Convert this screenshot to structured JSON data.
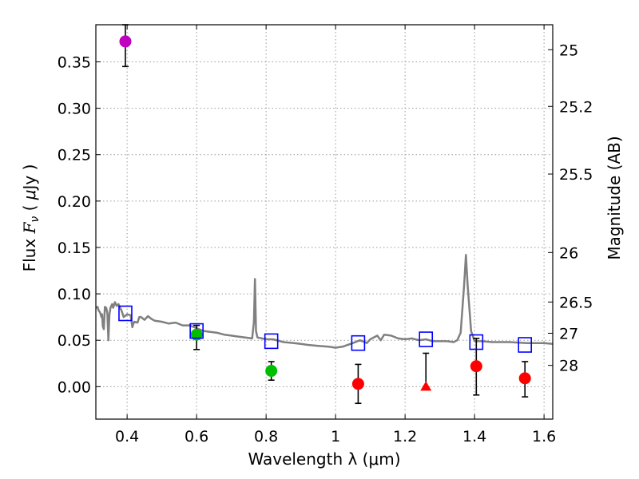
{
  "chart_data": {
    "type": "scatter",
    "xlabel": "Wavelength  λ (μm)",
    "ylabel_parts": [
      "Flux  ",
      "F",
      "ν",
      "  ( ",
      "μ",
      "Jy )"
    ],
    "y2label": "Magnitude (AB)",
    "xlim": [
      0.31,
      1.625
    ],
    "ylim": [
      -0.035,
      0.39
    ],
    "grid": true,
    "xticks": [
      0.4,
      0.6,
      0.8,
      1,
      1.2,
      1.4,
      1.6
    ],
    "xtick_labels": [
      "0.4",
      "0.6",
      "0.8",
      "1",
      "1.2",
      "1.4",
      "1.6"
    ],
    "yticks": [
      0.0,
      0.05,
      0.1,
      0.15,
      0.2,
      0.25,
      0.3,
      0.35
    ],
    "ytick_labels": [
      "0.00",
      "0.05",
      "0.10",
      "0.15",
      "0.20",
      "0.25",
      "0.30",
      "0.35"
    ],
    "mag_ticks": [
      25,
      25.2,
      25.5,
      26,
      26.5,
      27,
      28
    ],
    "mag_tick_labels": [
      "25",
      "25.2",
      "25.5",
      "26",
      "26.5",
      "27",
      "28"
    ],
    "colors": {
      "sed": "#808080",
      "purple": "#bf00bf",
      "green": "#00bf00",
      "red": "#ff0000",
      "model": "#0000ff",
      "errorbar": "#000000",
      "grid": "#9a9a9a"
    },
    "series": [
      {
        "name": "SED template",
        "kind": "line",
        "points": [
          [
            0.31,
            0.085
          ],
          [
            0.315,
            0.086
          ],
          [
            0.318,
            0.082
          ],
          [
            0.322,
            0.08
          ],
          [
            0.326,
            0.075
          ],
          [
            0.328,
            0.078
          ],
          [
            0.33,
            0.065
          ],
          [
            0.333,
            0.062
          ],
          [
            0.336,
            0.086
          ],
          [
            0.34,
            0.085
          ],
          [
            0.343,
            0.079
          ],
          [
            0.346,
            0.05
          ],
          [
            0.349,
            0.078
          ],
          [
            0.352,
            0.085
          ],
          [
            0.357,
            0.089
          ],
          [
            0.36,
            0.085
          ],
          [
            0.365,
            0.091
          ],
          [
            0.37,
            0.087
          ],
          [
            0.375,
            0.089
          ],
          [
            0.38,
            0.085
          ],
          [
            0.385,
            0.081
          ],
          [
            0.39,
            0.075
          ],
          [
            0.4,
            0.078
          ],
          [
            0.41,
            0.077
          ],
          [
            0.415,
            0.064
          ],
          [
            0.42,
            0.07
          ],
          [
            0.43,
            0.069
          ],
          [
            0.435,
            0.075
          ],
          [
            0.44,
            0.075
          ],
          [
            0.45,
            0.072
          ],
          [
            0.46,
            0.076
          ],
          [
            0.47,
            0.073
          ],
          [
            0.48,
            0.071
          ],
          [
            0.5,
            0.07
          ],
          [
            0.52,
            0.068
          ],
          [
            0.54,
            0.069
          ],
          [
            0.56,
            0.066
          ],
          [
            0.58,
            0.066
          ],
          [
            0.6,
            0.063
          ],
          [
            0.62,
            0.06
          ],
          [
            0.64,
            0.059
          ],
          [
            0.66,
            0.058
          ],
          [
            0.68,
            0.056
          ],
          [
            0.7,
            0.055
          ],
          [
            0.72,
            0.054
          ],
          [
            0.74,
            0.053
          ],
          [
            0.76,
            0.052
          ],
          [
            0.765,
            0.07
          ],
          [
            0.768,
            0.116
          ],
          [
            0.771,
            0.06
          ],
          [
            0.775,
            0.053
          ],
          [
            0.8,
            0.051
          ],
          [
            0.82,
            0.051
          ],
          [
            0.85,
            0.048
          ],
          [
            0.88,
            0.047
          ],
          [
            0.9,
            0.046
          ],
          [
            0.92,
            0.045
          ],
          [
            0.95,
            0.044
          ],
          [
            0.98,
            0.043
          ],
          [
            1.0,
            0.042
          ],
          [
            1.02,
            0.043
          ],
          [
            1.05,
            0.047
          ],
          [
            1.07,
            0.05
          ],
          [
            1.09,
            0.047
          ],
          [
            1.1,
            0.051
          ],
          [
            1.12,
            0.055
          ],
          [
            1.13,
            0.05
          ],
          [
            1.14,
            0.056
          ],
          [
            1.16,
            0.055
          ],
          [
            1.18,
            0.052
          ],
          [
            1.2,
            0.051
          ],
          [
            1.22,
            0.052
          ],
          [
            1.24,
            0.05
          ],
          [
            1.26,
            0.051
          ],
          [
            1.28,
            0.049
          ],
          [
            1.3,
            0.049
          ],
          [
            1.32,
            0.049
          ],
          [
            1.34,
            0.048
          ],
          [
            1.35,
            0.05
          ],
          [
            1.36,
            0.058
          ],
          [
            1.37,
            0.11
          ],
          [
            1.375,
            0.142
          ],
          [
            1.38,
            0.11
          ],
          [
            1.39,
            0.06
          ],
          [
            1.4,
            0.049
          ],
          [
            1.42,
            0.049
          ],
          [
            1.45,
            0.048
          ],
          [
            1.5,
            0.048
          ],
          [
            1.55,
            0.047
          ],
          [
            1.6,
            0.047
          ],
          [
            1.625,
            0.046
          ]
        ]
      },
      {
        "name": "Photometry (purple)",
        "kind": "circle",
        "color": "purple",
        "points": [
          {
            "x": 0.395,
            "y": 0.372,
            "err_lo": 0.027,
            "err_hi": 0.018
          }
        ]
      },
      {
        "name": "Photometry (green)",
        "kind": "circle",
        "color": "green",
        "points": [
          {
            "x": 0.6,
            "y": 0.056,
            "err_lo": 0.016,
            "err_hi": 0.01
          },
          {
            "x": 0.815,
            "y": 0.017,
            "err_lo": 0.01,
            "err_hi": 0.01
          }
        ]
      },
      {
        "name": "Photometry (red)",
        "kind": "circle",
        "color": "red",
        "points": [
          {
            "x": 1.065,
            "y": 0.003,
            "err_lo": 0.021,
            "err_hi": 0.021
          },
          {
            "x": 1.405,
            "y": 0.022,
            "err_lo": 0.031,
            "err_hi": 0.03
          },
          {
            "x": 1.545,
            "y": 0.009,
            "err_lo": 0.02,
            "err_hi": 0.018
          }
        ]
      },
      {
        "name": "Upper limit",
        "kind": "triangle",
        "color": "red",
        "points": [
          {
            "x": 1.26,
            "y": 0.0,
            "err_lo": 0.0,
            "err_hi": 0.036
          }
        ]
      },
      {
        "name": "Model photometry",
        "kind": "open-square",
        "color": "model",
        "points": [
          {
            "x": 0.395,
            "y": 0.079
          },
          {
            "x": 0.6,
            "y": 0.06
          },
          {
            "x": 0.815,
            "y": 0.049
          },
          {
            "x": 1.065,
            "y": 0.047
          },
          {
            "x": 1.26,
            "y": 0.051
          },
          {
            "x": 1.405,
            "y": 0.048
          },
          {
            "x": 1.545,
            "y": 0.045
          }
        ]
      }
    ]
  }
}
